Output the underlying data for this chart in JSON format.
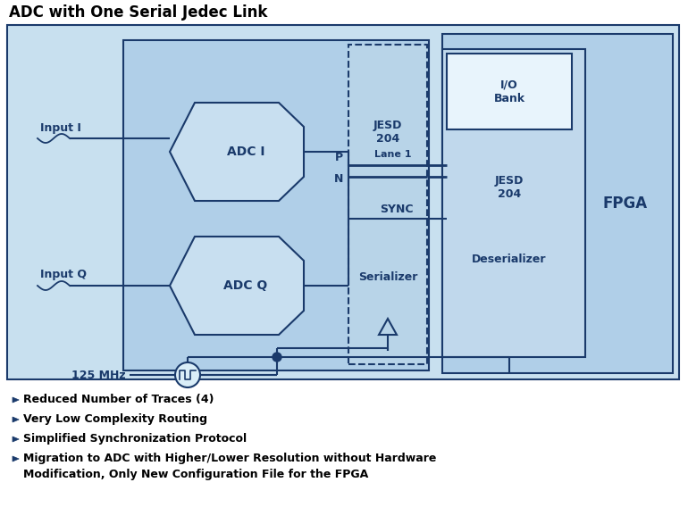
{
  "title": "ADC with One Serial Jedec Link",
  "bg_outer": "#c8e0ef",
  "bg_inner_adc": "#b0cfe8",
  "bg_inner_fpga": "#b0cfe8",
  "bg_jesd_deser": "#c0d8ec",
  "bg_io_bank": "#e8f4fc",
  "bg_adc_block": "#c8dff0",
  "dark": "#1a3a6b",
  "bullet_color": "#1a3a6b",
  "bullet_items": [
    "Reduced Number of Traces (4)",
    "Very Low Complexity Routing",
    "Simplified Synchronization Protocol",
    "Migration to ADC with Higher/Lower Resolution without Hardware\nModification, Only New Configuration File for the FPGA"
  ],
  "layout": {
    "fig_w": 7.7,
    "fig_h": 5.87,
    "dpi": 100
  }
}
